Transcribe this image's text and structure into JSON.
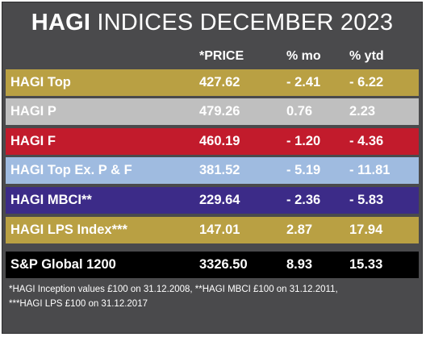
{
  "title": {
    "brand": "HAGI",
    "rest": "INDICES DECEMBER 2023"
  },
  "columns": {
    "price": "*PRICE",
    "mo": "% mo",
    "ytd": "% ytd"
  },
  "colors": {
    "background": "#4a4a4c",
    "gold": "#b9a043",
    "silver": "#bfbfbf",
    "red": "#c21b2c",
    "light_blue": "#9fbbe0",
    "purple": "#3c2b88",
    "black": "#000000"
  },
  "rows": [
    {
      "name": "HAGI Top",
      "price": "427.62",
      "mo": "- 2.41",
      "ytd": "- 6.22",
      "color": "#b9a043"
    },
    {
      "name": "HAGI P",
      "price": "479.26",
      "mo": "0.76",
      "ytd": "2.23",
      "color": "#bfbfbf"
    },
    {
      "name": "HAGI F",
      "price": "460.19",
      "mo": "- 1.20",
      "ytd": "- 4.36",
      "color": "#c21b2c"
    },
    {
      "name": "HAGI Top Ex. P & F",
      "price": "381.52",
      "mo": "- 5.19",
      "ytd": "- 11.81",
      "color": "#9fbbe0"
    },
    {
      "name": "HAGI MBCI**",
      "price": "229.64",
      "mo": "- 2.36",
      "ytd": "- 5.83",
      "color": "#3c2b88"
    },
    {
      "name": "HAGI LPS Index***",
      "price": "147.01",
      "mo": "2.87",
      "ytd": "17.94",
      "color": "#b9a043"
    },
    {
      "name": "S&P Global 1200",
      "price": "3326.50",
      "mo": "8.93",
      "ytd": "15.33",
      "color": "#000000"
    }
  ],
  "footnote": {
    "line1": "*HAGI Inception values £100 on 31.12.2008, **HAGI MBCI £100 on 31.12.2011,",
    "line2": "***HAGI LPS £100 on 31.12.2017"
  }
}
